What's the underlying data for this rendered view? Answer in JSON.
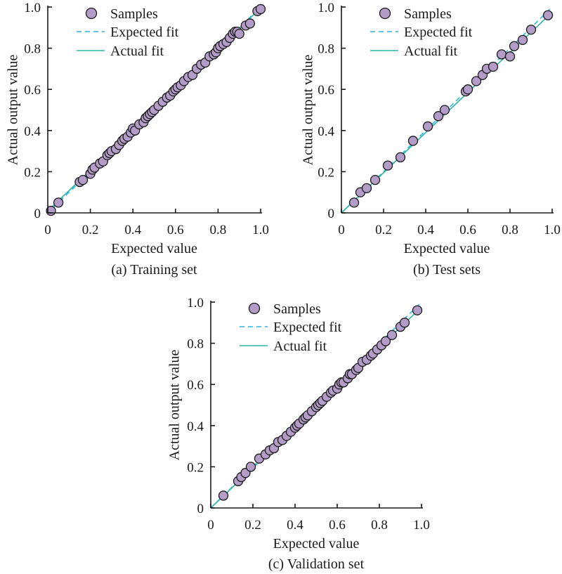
{
  "colors": {
    "marker_fill": "#b39cc7",
    "marker_edge": "#1a1a1a",
    "expected_fit": "#29b6e6",
    "actual_fit": "#2ab5a5"
  },
  "chart_data": [
    {
      "type": "scatter",
      "caption": "(a) Training set",
      "xlabel": "Expected value",
      "ylabel": "Actual output value",
      "xlim": [
        0,
        1.0
      ],
      "ylim": [
        0,
        1.0
      ],
      "xticks": [
        "0",
        "0.2",
        "0.4",
        "0.6",
        "0.8",
        "1.0"
      ],
      "yticks": [
        "0",
        "0.2",
        "0.4",
        "0.6",
        "0.8",
        "1.0"
      ],
      "legend": {
        "position": "top-left",
        "entries": [
          "Samples",
          "Expected fit",
          "Actual fit"
        ]
      },
      "actual_fit": {
        "slope": 0.985,
        "intercept": 0.01
      },
      "samples": {
        "x": [
          0.015,
          0.05,
          0.15,
          0.165,
          0.2,
          0.21,
          0.22,
          0.245,
          0.26,
          0.28,
          0.29,
          0.3,
          0.32,
          0.335,
          0.35,
          0.36,
          0.375,
          0.39,
          0.4,
          0.41,
          0.43,
          0.45,
          0.46,
          0.47,
          0.48,
          0.49,
          0.5,
          0.52,
          0.54,
          0.56,
          0.575,
          0.59,
          0.6,
          0.61,
          0.625,
          0.64,
          0.66,
          0.68,
          0.7,
          0.72,
          0.74,
          0.76,
          0.78,
          0.79,
          0.8,
          0.81,
          0.825,
          0.84,
          0.855,
          0.87,
          0.88,
          0.89,
          0.9,
          0.93,
          0.95,
          0.985,
          1.0
        ],
        "y": [
          0.01,
          0.05,
          0.15,
          0.16,
          0.19,
          0.21,
          0.22,
          0.24,
          0.25,
          0.28,
          0.29,
          0.3,
          0.31,
          0.33,
          0.35,
          0.36,
          0.37,
          0.39,
          0.41,
          0.4,
          0.43,
          0.44,
          0.46,
          0.47,
          0.48,
          0.49,
          0.5,
          0.52,
          0.54,
          0.56,
          0.57,
          0.59,
          0.6,
          0.61,
          0.62,
          0.64,
          0.66,
          0.67,
          0.7,
          0.72,
          0.73,
          0.76,
          0.77,
          0.78,
          0.8,
          0.81,
          0.82,
          0.83,
          0.85,
          0.87,
          0.88,
          0.88,
          0.87,
          0.91,
          0.92,
          0.98,
          0.99
        ]
      }
    },
    {
      "type": "scatter",
      "caption": "(b) Test sets",
      "xlabel": "Expected value",
      "ylabel": "Actual output value",
      "xlim": [
        0,
        1.0
      ],
      "ylim": [
        0,
        1.0
      ],
      "xticks": [
        "0",
        "0.2",
        "0.4",
        "0.6",
        "0.8",
        "1.0"
      ],
      "yticks": [
        "0",
        "0.2",
        "0.4",
        "0.6",
        "0.8",
        "1.0"
      ],
      "legend": {
        "position": "top-left",
        "entries": [
          "Samples",
          "Expected fit",
          "Actual fit"
        ]
      },
      "actual_fit": {
        "slope": 0.975,
        "intercept": 0.0
      },
      "samples": {
        "x": [
          0.06,
          0.09,
          0.12,
          0.16,
          0.22,
          0.28,
          0.34,
          0.41,
          0.46,
          0.49,
          0.59,
          0.6,
          0.64,
          0.67,
          0.69,
          0.72,
          0.76,
          0.8,
          0.82,
          0.86,
          0.9,
          0.98
        ],
        "y": [
          0.05,
          0.1,
          0.12,
          0.16,
          0.23,
          0.27,
          0.35,
          0.42,
          0.47,
          0.5,
          0.59,
          0.6,
          0.64,
          0.67,
          0.7,
          0.71,
          0.77,
          0.76,
          0.81,
          0.84,
          0.89,
          0.96
        ]
      }
    },
    {
      "type": "scatter",
      "caption": "(c) Validation set",
      "xlabel": "Expected value",
      "ylabel": "Actual output value",
      "xlim": [
        0,
        1.0
      ],
      "ylim": [
        0,
        1.0
      ],
      "xticks": [
        "0",
        "0.2",
        "0.4",
        "0.6",
        "0.8",
        "1.0"
      ],
      "yticks": [
        "0",
        "0.2",
        "0.4",
        "0.6",
        "0.8",
        "1.0"
      ],
      "legend": {
        "position": "top-left",
        "entries": [
          "Samples",
          "Expected fit",
          "Actual fit"
        ]
      },
      "actual_fit": {
        "slope": 0.975,
        "intercept": 0.0
      },
      "samples": {
        "x": [
          0.06,
          0.13,
          0.145,
          0.165,
          0.19,
          0.23,
          0.26,
          0.28,
          0.3,
          0.32,
          0.34,
          0.36,
          0.38,
          0.4,
          0.41,
          0.42,
          0.44,
          0.45,
          0.46,
          0.48,
          0.5,
          0.51,
          0.52,
          0.53,
          0.55,
          0.57,
          0.58,
          0.6,
          0.61,
          0.62,
          0.63,
          0.65,
          0.66,
          0.67,
          0.69,
          0.7,
          0.72,
          0.74,
          0.76,
          0.77,
          0.79,
          0.81,
          0.83,
          0.86,
          0.9,
          0.92,
          0.98
        ],
        "y": [
          0.06,
          0.13,
          0.15,
          0.17,
          0.2,
          0.24,
          0.26,
          0.28,
          0.29,
          0.32,
          0.33,
          0.35,
          0.37,
          0.39,
          0.4,
          0.41,
          0.43,
          0.44,
          0.45,
          0.47,
          0.49,
          0.5,
          0.51,
          0.52,
          0.54,
          0.56,
          0.57,
          0.58,
          0.6,
          0.61,
          0.61,
          0.63,
          0.65,
          0.65,
          0.67,
          0.68,
          0.71,
          0.72,
          0.74,
          0.75,
          0.77,
          0.79,
          0.81,
          0.84,
          0.88,
          0.9,
          0.96
        ]
      }
    }
  ]
}
